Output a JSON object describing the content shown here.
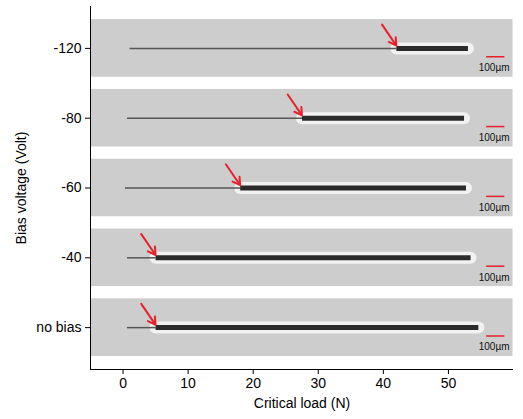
{
  "chart_data": {
    "type": "scatter",
    "x_label": "Critical load (N)",
    "y_label": "Bias voltage (Volt)",
    "categories": [
      "no bias",
      "-40",
      "-60",
      "-80",
      "-120"
    ],
    "values": [
      5,
      5,
      18,
      27.5,
      42
    ],
    "track_start": [
      0.6,
      0.6,
      0.3,
      0.6,
      1
    ],
    "track_end": [
      54.6,
      53.4,
      52.7,
      52.4,
      53
    ],
    "scale_bar": "100µm",
    "color": "#e8202a",
    "marker": "arrow",
    "xlim": [
      -5,
      60
    ],
    "xticks": [
      0,
      10,
      20,
      30,
      40,
      50
    ]
  }
}
